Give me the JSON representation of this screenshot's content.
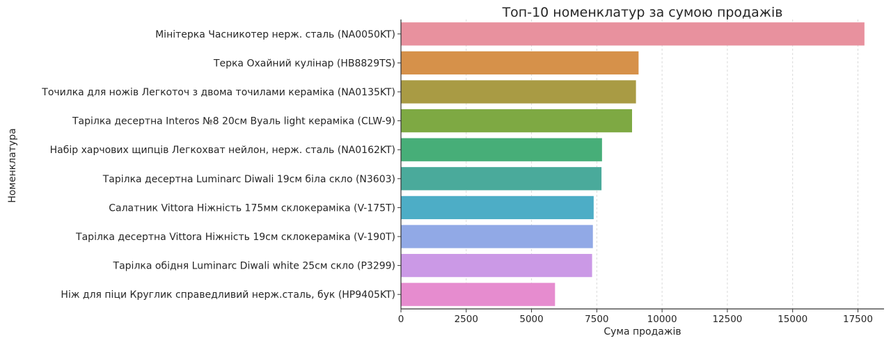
{
  "chart_data": {
    "type": "bar",
    "orientation": "horizontal",
    "title": "Топ-10 номенклатур за сумою продажів",
    "xlabel": "Сума продажів",
    "ylabel": "Номенклатура",
    "xlim": [
      0,
      18500
    ],
    "xticks": [
      0,
      2500,
      5000,
      7500,
      10000,
      12500,
      15000,
      17500
    ],
    "grid": "x-dashed",
    "categories": [
      "Мінітерка Часникотер нерж. сталь (NA0050KT)",
      "Терка Охайний кулінар (HB8829TS)",
      "Точилка для ножів Легкоточ з двома точилами кераміка (NA0135KT)",
      "Тарілка десертна Interos №8 20см Вуаль light кераміка (CLW-9)",
      "Набір харчових щипців Легкохват нейлон, нерж. сталь (NA0162KT)",
      "Тарілка десертна Luminarc Diwali 19см біла скло (N3603)",
      "Салатник Vittora Ніжність 175мм склокераміка (V-175T)",
      "Тарілка десертна Vittora Ніжність 19см склокераміка (V-190T)",
      "Тарілка обідня Luminarc Diwali white 25см скло (P3299)",
      "Ніж для піци Круглик справедливий нерж.сталь, бук (HP9405KT)"
    ],
    "values": [
      17750,
      9100,
      9000,
      8850,
      7700,
      7680,
      7380,
      7350,
      7320,
      5900
    ],
    "colors": [
      "#e8919e",
      "#d6914a",
      "#a99b44",
      "#7ea943",
      "#47ae78",
      "#4aaa9b",
      "#4dadc6",
      "#91a9e6",
      "#cb99e6",
      "#e68ccf"
    ]
  }
}
